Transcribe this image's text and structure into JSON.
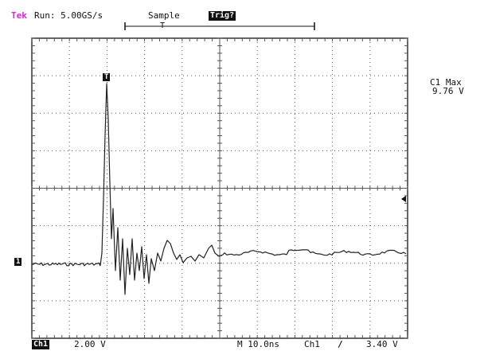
{
  "header": {
    "brand": "Tek",
    "run_status": "Run: 5.00GS/s",
    "acq_mode": "Sample",
    "trigger_status": "Trig?",
    "trigger_marker": "T"
  },
  "measurement": {
    "label": "C1 Max",
    "value": "9.76 V"
  },
  "markers": {
    "trigger_position": "T",
    "channel_ground": "1"
  },
  "footer": {
    "channel": "Ch1",
    "vertical_scale": "2.00 V",
    "timebase": "M 10.0ns",
    "trigger_source": "Ch1",
    "trigger_slope": "/",
    "trigger_level": "3.40 V"
  },
  "colors": {
    "brand": "#e81ce8",
    "trace": "#222222",
    "grid": "#555555"
  }
}
